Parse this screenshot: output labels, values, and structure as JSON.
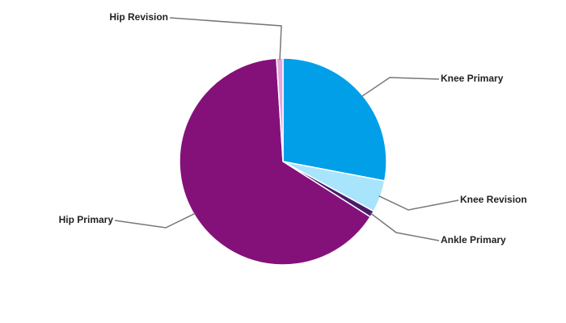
{
  "chart_data": {
    "type": "pie",
    "categories": [
      "Knee Primary",
      "Knee Revision",
      "Ankle Primary",
      "Hip Primary",
      "Hip Revision"
    ],
    "values": [
      28,
      5,
      1,
      65,
      1
    ],
    "colors": [
      "#009fe8",
      "#a8e4fb",
      "#4b1a6b",
      "#84117a",
      "#e4a6dc"
    ]
  }
}
